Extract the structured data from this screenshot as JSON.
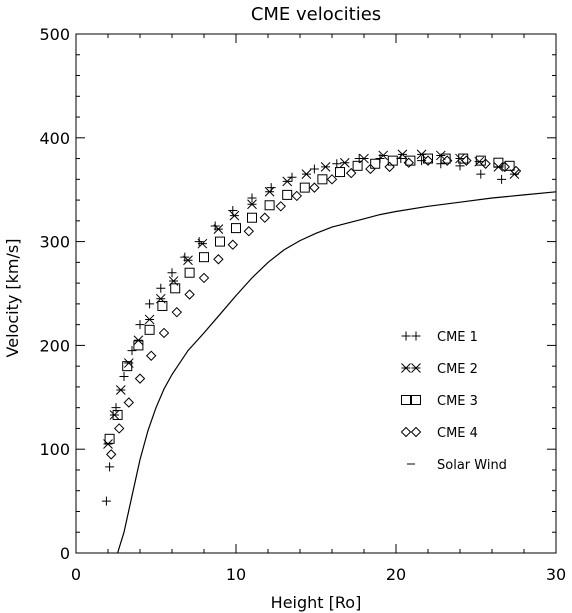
{
  "chart_data": {
    "type": "scatter",
    "title": "CME velocities",
    "xlabel": "Height [Ro]",
    "ylabel": "Velocity [km/s]",
    "xlim": [
      0,
      30
    ],
    "ylim": [
      0,
      500
    ],
    "xticks": [
      "0",
      "10",
      "20",
      "30"
    ],
    "yticks": [
      "0",
      "100",
      "200",
      "300",
      "400",
      "500"
    ],
    "grid": false,
    "legend_position": "lower-right",
    "series": [
      {
        "name": "CME 1",
        "marker": "plus",
        "x": [
          1.9,
          2.1,
          2.5,
          3.0,
          3.5,
          4.0,
          4.6,
          5.3,
          6.0,
          6.8,
          7.7,
          8.7,
          9.8,
          11.0,
          12.2,
          13.5,
          14.9,
          16.3,
          17.7,
          19.0,
          20.3,
          21.6,
          22.8,
          24.0,
          25.3,
          26.6
        ],
        "y": [
          50,
          83,
          140,
          170,
          195,
          220,
          240,
          255,
          270,
          285,
          300,
          315,
          330,
          342,
          352,
          362,
          370,
          375,
          380,
          380,
          380,
          378,
          375,
          373,
          365,
          360
        ]
      },
      {
        "name": "CME 2",
        "marker": "asterisk",
        "x": [
          2.0,
          2.4,
          2.8,
          3.3,
          3.9,
          4.6,
          5.3,
          6.1,
          7.0,
          7.9,
          8.9,
          9.9,
          11.0,
          12.1,
          13.2,
          14.4,
          15.6,
          16.8,
          18.0,
          19.2,
          20.4,
          21.6,
          22.8,
          24.0,
          25.2,
          26.4,
          27.4
        ],
        "y": [
          105,
          133,
          157,
          183,
          205,
          225,
          245,
          262,
          282,
          298,
          312,
          325,
          336,
          348,
          358,
          365,
          372,
          376,
          380,
          383,
          384,
          384,
          383,
          380,
          377,
          372,
          365
        ]
      },
      {
        "name": "CME 3",
        "marker": "square",
        "x": [
          2.1,
          2.6,
          3.2,
          3.9,
          4.6,
          5.4,
          6.2,
          7.1,
          8.0,
          9.0,
          10.0,
          11.0,
          12.1,
          13.2,
          14.3,
          15.4,
          16.5,
          17.6,
          18.7,
          19.8,
          20.9,
          22.0,
          23.1,
          24.2,
          25.3,
          26.4,
          27.1
        ],
        "y": [
          110,
          133,
          180,
          200,
          215,
          238,
          255,
          270,
          285,
          300,
          313,
          323,
          335,
          345,
          352,
          360,
          367,
          373,
          375,
          378,
          378,
          380,
          380,
          380,
          378,
          376,
          373
        ]
      },
      {
        "name": "CME 4",
        "marker": "diamond",
        "x": [
          2.2,
          2.7,
          3.3,
          4.0,
          4.7,
          5.5,
          6.3,
          7.1,
          8.0,
          8.9,
          9.8,
          10.8,
          11.8,
          12.8,
          13.8,
          14.9,
          16.0,
          17.2,
          18.4,
          19.6,
          20.8,
          22.0,
          23.2,
          24.4,
          25.6,
          26.8,
          27.5
        ],
        "y": [
          95,
          120,
          145,
          168,
          190,
          212,
          232,
          249,
          265,
          283,
          297,
          310,
          323,
          334,
          344,
          352,
          360,
          366,
          370,
          372,
          376,
          378,
          378,
          378,
          375,
          372,
          368
        ]
      },
      {
        "name": "Solar Wind",
        "marker": "line",
        "x": [
          2.6,
          3.0,
          3.5,
          4.0,
          4.5,
          5.0,
          5.5,
          6.0,
          7.0,
          8.0,
          9.0,
          10.0,
          11.0,
          12.0,
          13.0,
          14.0,
          15.0,
          16.0,
          17.0,
          18.0,
          19.0,
          20.0,
          22.0,
          24.0,
          26.0,
          28.0,
          30.0
        ],
        "y": [
          0,
          20,
          55,
          90,
          118,
          140,
          158,
          172,
          195,
          212,
          230,
          248,
          265,
          280,
          292,
          301,
          308,
          314,
          318,
          322,
          326,
          329,
          334,
          338,
          342,
          345,
          348
        ]
      }
    ]
  }
}
